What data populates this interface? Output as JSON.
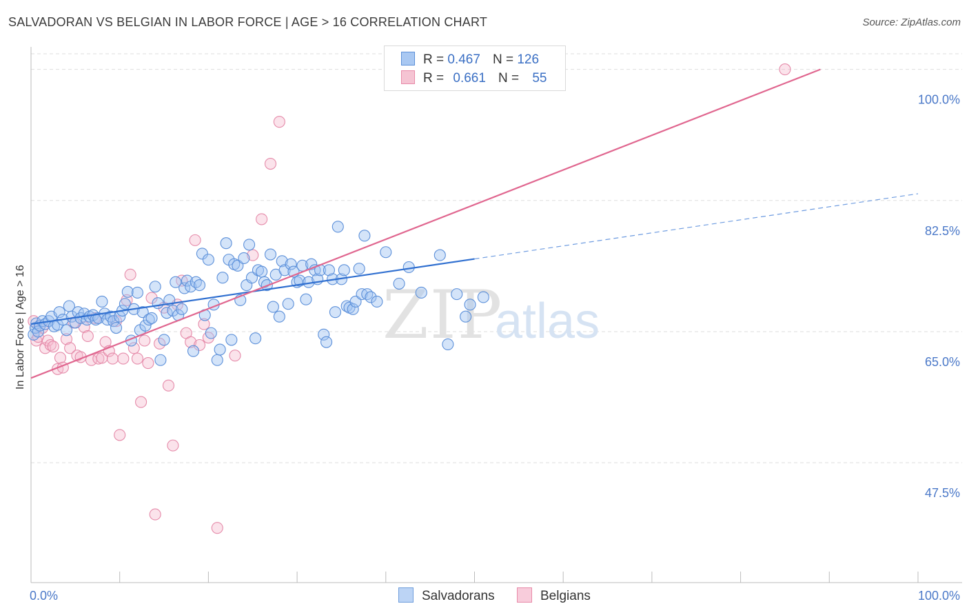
{
  "title": "SALVADORAN VS BELGIAN IN LABOR FORCE | AGE > 16 CORRELATION CHART",
  "source": "Source: ZipAtlas.com",
  "watermark": {
    "zip": "ZIP",
    "atlas": "atlas"
  },
  "legend": {
    "rows": [
      {
        "r_label": "R =",
        "r_value": "0.467",
        "n_label": "N =",
        "n_value": "126"
      },
      {
        "r_label": "R =",
        "r_value": "0.661",
        "n_label": "N =",
        "n_value": "55"
      }
    ]
  },
  "bottom_legend": [
    "Salvadorans",
    "Belgians"
  ],
  "colors": {
    "blue": "#2f6fd0",
    "blue_fill": "#a9c8f2",
    "pink": "#e0668f",
    "pink_fill": "#f5b9cc",
    "axis_label": "#4a78c8"
  },
  "chart_data": {
    "type": "scatter",
    "xlabel": "",
    "ylabel": "In Labor Force | Age > 16",
    "xlim": [
      0,
      100
    ],
    "ylim": [
      31.5,
      103
    ],
    "x_tick_labels": [
      "0.0%",
      "100.0%"
    ],
    "y_ticks": [
      47.5,
      65.0,
      82.5,
      100.0
    ],
    "y_tick_labels": [
      "47.5%",
      "65.0%",
      "82.5%",
      "100.0%"
    ],
    "series": [
      {
        "name": "Salvadorans",
        "R": 0.467,
        "N": 126,
        "trend": {
          "x0": 0,
          "y0": 66.0,
          "x1": 50,
          "y1": 74.7,
          "dash_x1": 100,
          "dash_y1": 83.4
        },
        "points": [
          [
            0.3,
            64.6
          ],
          [
            0.5,
            65.5
          ],
          [
            0.6,
            66.1
          ],
          [
            0.8,
            65.0
          ],
          [
            1.0,
            65.8
          ],
          [
            1.3,
            66.4
          ],
          [
            1.6,
            66.0
          ],
          [
            2.0,
            66.4
          ],
          [
            2.3,
            67.0
          ],
          [
            2.6,
            65.7
          ],
          [
            3.0,
            65.9
          ],
          [
            3.2,
            67.6
          ],
          [
            3.6,
            66.6
          ],
          [
            4.0,
            65.2
          ],
          [
            4.3,
            68.4
          ],
          [
            4.6,
            67.0
          ],
          [
            5.0,
            66.2
          ],
          [
            5.3,
            67.6
          ],
          [
            5.6,
            66.8
          ],
          [
            6.0,
            67.4
          ],
          [
            6.3,
            66.6
          ],
          [
            6.6,
            67.0
          ],
          [
            7.0,
            67.2
          ],
          [
            7.3,
            66.6
          ],
          [
            7.6,
            66.8
          ],
          [
            8.0,
            69.0
          ],
          [
            8.3,
            67.4
          ],
          [
            8.6,
            66.6
          ],
          [
            9.0,
            67.0
          ],
          [
            9.3,
            66.4
          ],
          [
            9.6,
            65.5
          ],
          [
            10.0,
            67.0
          ],
          [
            10.3,
            67.8
          ],
          [
            10.6,
            68.7
          ],
          [
            10.9,
            70.3
          ],
          [
            11.3,
            63.8
          ],
          [
            11.6,
            68.0
          ],
          [
            12.0,
            70.2
          ],
          [
            12.3,
            65.2
          ],
          [
            12.6,
            67.6
          ],
          [
            12.9,
            65.8
          ],
          [
            13.3,
            66.6
          ],
          [
            13.6,
            66.8
          ],
          [
            14.0,
            71.0
          ],
          [
            14.3,
            68.8
          ],
          [
            14.6,
            61.2
          ],
          [
            15.0,
            63.9
          ],
          [
            15.3,
            67.5
          ],
          [
            15.6,
            69.2
          ],
          [
            16.0,
            67.8
          ],
          [
            16.3,
            71.6
          ],
          [
            16.6,
            67.2
          ],
          [
            17.0,
            68.0
          ],
          [
            17.3,
            70.8
          ],
          [
            17.6,
            71.8
          ],
          [
            18.0,
            71.0
          ],
          [
            18.3,
            62.4
          ],
          [
            18.6,
            71.6
          ],
          [
            19.0,
            71.2
          ],
          [
            19.3,
            75.4
          ],
          [
            19.6,
            67.2
          ],
          [
            20.0,
            74.6
          ],
          [
            20.3,
            64.8
          ],
          [
            20.6,
            68.6
          ],
          [
            21.0,
            61.2
          ],
          [
            21.3,
            62.6
          ],
          [
            21.6,
            72.2
          ],
          [
            22.0,
            76.8
          ],
          [
            22.3,
            74.6
          ],
          [
            22.6,
            63.9
          ],
          [
            22.9,
            74.0
          ],
          [
            23.3,
            73.8
          ],
          [
            23.6,
            69.2
          ],
          [
            24.0,
            74.8
          ],
          [
            24.3,
            71.2
          ],
          [
            24.6,
            76.6
          ],
          [
            24.9,
            72.2
          ],
          [
            25.3,
            64.1
          ],
          [
            25.6,
            73.2
          ],
          [
            26.0,
            73.0
          ],
          [
            26.3,
            71.6
          ],
          [
            26.6,
            71.2
          ],
          [
            27.0,
            75.3
          ],
          [
            27.3,
            68.3
          ],
          [
            27.6,
            72.6
          ],
          [
            28.0,
            67.0
          ],
          [
            28.3,
            74.4
          ],
          [
            28.6,
            73.2
          ],
          [
            29.0,
            68.7
          ],
          [
            29.3,
            74.0
          ],
          [
            29.6,
            73.0
          ],
          [
            30.0,
            71.6
          ],
          [
            30.3,
            71.8
          ],
          [
            30.6,
            73.8
          ],
          [
            31.0,
            69.3
          ],
          [
            31.3,
            71.6
          ],
          [
            31.6,
            74.0
          ],
          [
            32.0,
            73.2
          ],
          [
            32.3,
            72.0
          ],
          [
            32.6,
            73.2
          ],
          [
            33.0,
            64.6
          ],
          [
            33.3,
            63.6
          ],
          [
            33.6,
            73.2
          ],
          [
            34.0,
            72.0
          ],
          [
            34.3,
            67.6
          ],
          [
            34.6,
            79.0
          ],
          [
            35.0,
            72.0
          ],
          [
            35.3,
            73.2
          ],
          [
            35.6,
            68.4
          ],
          [
            35.9,
            68.2
          ],
          [
            36.3,
            68.0
          ],
          [
            36.6,
            69.0
          ],
          [
            37.0,
            73.4
          ],
          [
            37.3,
            70.0
          ],
          [
            37.6,
            77.8
          ],
          [
            37.9,
            70.0
          ],
          [
            38.3,
            69.6
          ],
          [
            39.0,
            69.0
          ],
          [
            40.0,
            75.6
          ],
          [
            41.5,
            71.4
          ],
          [
            42.6,
            73.6
          ],
          [
            44.0,
            70.2
          ],
          [
            46.1,
            75.2
          ],
          [
            47.0,
            63.3
          ],
          [
            48.0,
            70.0
          ],
          [
            49.0,
            67.0
          ],
          [
            49.5,
            68.6
          ],
          [
            51.0,
            69.6
          ]
        ]
      },
      {
        "name": "Belgians",
        "R": 0.661,
        "N": 55,
        "trend": {
          "x0": 0,
          "y0": 58.8,
          "x1": 89,
          "y1": 100.0
        },
        "points": [
          [
            0.3,
            66.4
          ],
          [
            0.6,
            63.8
          ],
          [
            0.8,
            64.3
          ],
          [
            1.0,
            65.8
          ],
          [
            1.3,
            65.5
          ],
          [
            1.6,
            62.8
          ],
          [
            1.9,
            63.8
          ],
          [
            2.2,
            63.2
          ],
          [
            2.5,
            63.0
          ],
          [
            3.0,
            60.0
          ],
          [
            3.3,
            61.5
          ],
          [
            3.6,
            60.2
          ],
          [
            4.0,
            64.0
          ],
          [
            4.4,
            62.8
          ],
          [
            4.8,
            66.2
          ],
          [
            5.2,
            61.8
          ],
          [
            5.6,
            61.6
          ],
          [
            6.0,
            65.6
          ],
          [
            6.4,
            64.4
          ],
          [
            6.8,
            61.2
          ],
          [
            7.2,
            66.8
          ],
          [
            7.6,
            61.4
          ],
          [
            8.0,
            61.5
          ],
          [
            8.4,
            63.6
          ],
          [
            8.8,
            62.4
          ],
          [
            9.2,
            61.4
          ],
          [
            9.6,
            66.4
          ],
          [
            10.0,
            51.2
          ],
          [
            10.4,
            61.4
          ],
          [
            10.8,
            69.2
          ],
          [
            11.2,
            72.6
          ],
          [
            11.6,
            62.8
          ],
          [
            12.0,
            61.4
          ],
          [
            12.4,
            55.6
          ],
          [
            12.8,
            63.8
          ],
          [
            13.2,
            60.8
          ],
          [
            13.6,
            69.5
          ],
          [
            14.0,
            40.6
          ],
          [
            14.5,
            63.4
          ],
          [
            15.0,
            68.2
          ],
          [
            15.5,
            57.8
          ],
          [
            16.0,
            49.8
          ],
          [
            16.5,
            68.6
          ],
          [
            17.0,
            71.8
          ],
          [
            17.5,
            64.8
          ],
          [
            18.0,
            63.6
          ],
          [
            18.5,
            77.2
          ],
          [
            19.0,
            63.2
          ],
          [
            19.5,
            66.0
          ],
          [
            20.0,
            64.2
          ],
          [
            21.0,
            38.8
          ],
          [
            23.0,
            61.8
          ],
          [
            25.0,
            75.2
          ],
          [
            26.0,
            80.0
          ],
          [
            27.0,
            87.4
          ],
          [
            28.0,
            93.0
          ],
          [
            85.0,
            100.0
          ]
        ]
      }
    ]
  }
}
